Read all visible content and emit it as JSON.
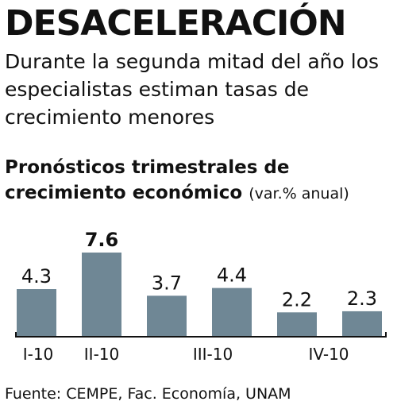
{
  "header": {
    "title": "DESACELERACIÓN",
    "subtitle": "Durante la segunda mitad del año los especialistas estiman tasas de crecimiento menores"
  },
  "chart_title": {
    "main": "Pronósticos trimestrales de crecimiento económico",
    "unit": "(var.% anual)"
  },
  "footer": {
    "source": "Fuente: CEMPE, Fac. Economía, UNAM"
  },
  "colors": {
    "bar": "#6f8795",
    "text": "#111111",
    "axis": "#111111"
  },
  "chart_data": {
    "type": "bar",
    "title": "Pronósticos trimestrales de crecimiento económico",
    "ylabel": "(var.% anual)",
    "xlabel": "",
    "categories": [
      "I-10",
      "II-10",
      "III-10",
      "IV-10"
    ],
    "bars": [
      {
        "category": "I-10",
        "value": 4.3,
        "label": "4.3"
      },
      {
        "category": "II-10",
        "value": 7.6,
        "label": "7.6"
      },
      {
        "category": "III-10",
        "value": 3.7,
        "label": "3.7"
      },
      {
        "category": "III-10",
        "value": 4.4,
        "label": "4.4"
      },
      {
        "category": "IV-10",
        "value": 2.2,
        "label": "2.2"
      },
      {
        "category": "IV-10",
        "value": 2.3,
        "label": "2.3"
      }
    ],
    "ylim": [
      0,
      7.6
    ],
    "grid": false,
    "legend": "none"
  }
}
